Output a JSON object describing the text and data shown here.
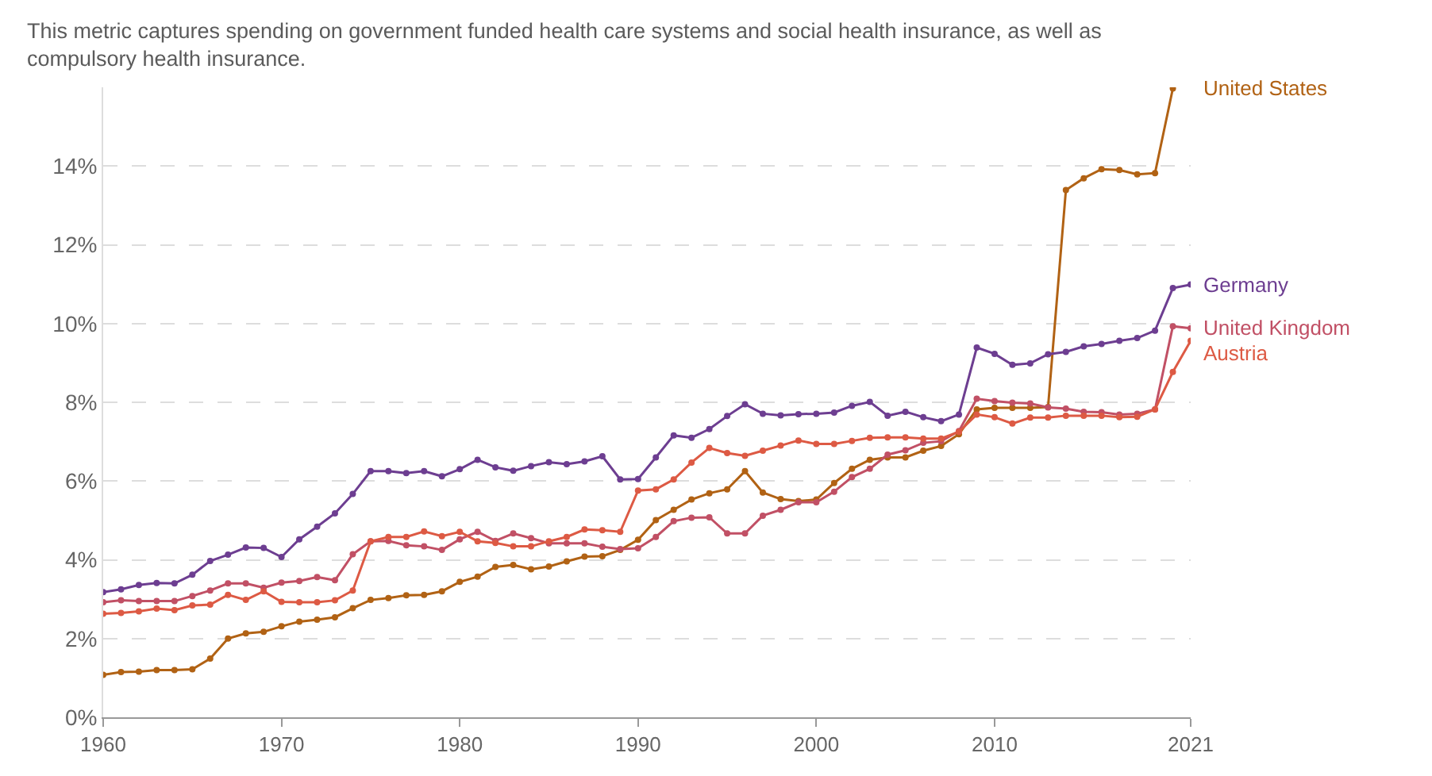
{
  "chart_data": {
    "type": "line",
    "subtitle": "This metric captures spending on government funded health care systems and social health insurance, as well as compulsory health insurance.",
    "x": [
      1960,
      1961,
      1962,
      1963,
      1964,
      1965,
      1966,
      1967,
      1968,
      1969,
      1970,
      1971,
      1972,
      1973,
      1974,
      1975,
      1976,
      1977,
      1978,
      1979,
      1980,
      1981,
      1982,
      1983,
      1984,
      1985,
      1986,
      1987,
      1988,
      1989,
      1990,
      1991,
      1992,
      1993,
      1994,
      1995,
      1996,
      1997,
      1998,
      1999,
      2000,
      2001,
      2002,
      2003,
      2004,
      2005,
      2006,
      2007,
      2008,
      2009,
      2010,
      2011,
      2012,
      2013,
      2014,
      2015,
      2016,
      2017,
      2018,
      2019,
      2020,
      2021
    ],
    "series": [
      {
        "name": "United States",
        "color": "#b16214",
        "values": [
          1.08,
          1.15,
          1.16,
          1.2,
          1.2,
          1.22,
          1.49,
          2.0,
          2.13,
          2.17,
          2.31,
          2.43,
          2.48,
          2.54,
          2.77,
          2.98,
          3.03,
          3.1,
          3.11,
          3.2,
          3.44,
          3.57,
          3.82,
          3.87,
          3.76,
          3.83,
          3.96,
          4.08,
          4.09,
          4.25,
          4.51,
          5.01,
          5.27,
          5.53,
          5.69,
          5.79,
          6.25,
          5.71,
          5.54,
          5.49,
          5.53,
          5.95,
          6.31,
          6.54,
          6.6,
          6.6,
          6.77,
          6.89,
          7.19,
          7.82,
          7.86,
          7.86,
          7.86,
          7.88,
          13.39,
          13.69,
          13.92,
          13.9,
          13.79,
          13.82,
          15.97,
          null
        ]
      },
      {
        "name": "Germany",
        "color": "#6d3e91",
        "values": [
          3.18,
          3.25,
          3.36,
          3.41,
          3.4,
          3.62,
          3.97,
          4.13,
          4.31,
          4.3,
          4.07,
          4.52,
          4.84,
          5.18,
          5.67,
          6.25,
          6.25,
          6.2,
          6.25,
          6.12,
          6.3,
          6.54,
          6.35,
          6.26,
          6.38,
          6.48,
          6.43,
          6.5,
          6.63,
          6.04,
          6.05,
          6.6,
          7.16,
          7.1,
          7.32,
          7.65,
          7.95,
          7.71,
          7.67,
          7.7,
          7.71,
          7.74,
          7.91,
          8.01,
          7.66,
          7.76,
          7.62,
          7.52,
          7.69,
          9.39,
          9.23,
          8.95,
          8.99,
          9.22,
          9.28,
          9.42,
          9.48,
          9.56,
          9.63,
          9.82,
          10.9,
          10.99
        ]
      },
      {
        "name": "United Kingdom",
        "color": "#c15065",
        "values": [
          2.92,
          2.97,
          2.95,
          2.95,
          2.95,
          3.08,
          3.22,
          3.4,
          3.4,
          3.29,
          3.42,
          3.46,
          3.56,
          3.48,
          4.14,
          4.47,
          4.48,
          4.37,
          4.34,
          4.25,
          4.52,
          4.71,
          4.48,
          4.67,
          4.55,
          4.42,
          4.42,
          4.42,
          4.33,
          4.27,
          4.29,
          4.58,
          4.98,
          5.07,
          5.08,
          4.67,
          4.67,
          5.12,
          5.27,
          5.46,
          5.46,
          5.73,
          6.1,
          6.31,
          6.67,
          6.78,
          6.97,
          7.01,
          7.27,
          8.09,
          8.03,
          7.99,
          7.97,
          7.87,
          7.84,
          7.76,
          7.75,
          7.69,
          7.71,
          7.82,
          9.93,
          9.88
        ]
      },
      {
        "name": "Austria",
        "color": "#dd5a44",
        "values": [
          2.63,
          2.65,
          2.69,
          2.76,
          2.72,
          2.84,
          2.86,
          3.11,
          2.98,
          3.2,
          2.93,
          2.92,
          2.92,
          2.97,
          3.22,
          4.47,
          4.58,
          4.58,
          4.72,
          4.6,
          4.71,
          4.47,
          4.43,
          4.34,
          4.34,
          4.47,
          4.58,
          4.77,
          4.75,
          4.71,
          5.76,
          5.79,
          6.04,
          6.47,
          6.84,
          6.71,
          6.64,
          6.77,
          6.9,
          7.03,
          6.94,
          6.94,
          7.02,
          7.1,
          7.11,
          7.11,
          7.08,
          7.08,
          7.25,
          7.69,
          7.62,
          7.46,
          7.61,
          7.61,
          7.66,
          7.66,
          7.66,
          7.62,
          7.63,
          7.82,
          8.77,
          9.56
        ]
      }
    ],
    "xlim": [
      1960,
      2021
    ],
    "xticks": [
      1960,
      1970,
      1980,
      1990,
      2000,
      2010,
      2021
    ],
    "ylim": [
      0,
      16
    ],
    "yticks": [
      {
        "value": 0,
        "label": "0%"
      },
      {
        "value": 2,
        "label": "2%"
      },
      {
        "value": 4,
        "label": "4%"
      },
      {
        "value": 6,
        "label": "6%"
      },
      {
        "value": 8,
        "label": "8%"
      },
      {
        "value": 10,
        "label": "10%"
      },
      {
        "value": 12,
        "label": "12%"
      },
      {
        "value": 14,
        "label": "14%"
      }
    ],
    "grid": "y",
    "legend": "right",
    "marker": "circle",
    "line_style": "solid"
  }
}
